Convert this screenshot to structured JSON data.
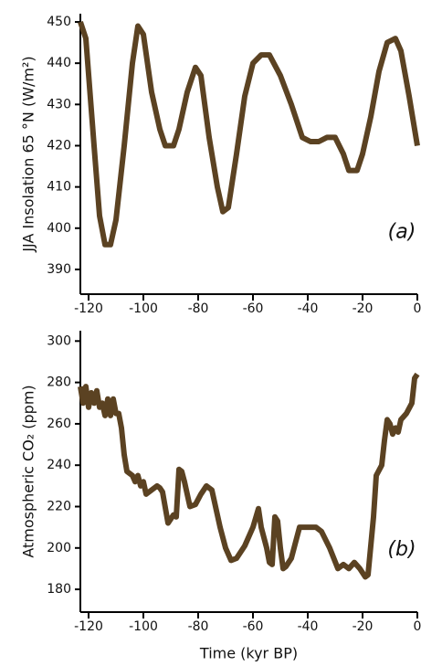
{
  "chart_data": [
    {
      "type": "line",
      "y_label": "JJA Insolation 65 °N (W/m²)",
      "annotation": "(a)",
      "color": "#5b4222",
      "xlim": [
        -123,
        0
      ],
      "xticks": [
        -120,
        -100,
        -80,
        -60,
        -40,
        -20,
        0
      ],
      "ylim": [
        384,
        452
      ],
      "yticks": [
        390,
        400,
        410,
        420,
        430,
        440,
        450
      ],
      "x": [
        -123,
        -121,
        -118,
        -116,
        -114,
        -112,
        -110,
        -107,
        -104,
        -102,
        -100,
        -97,
        -94,
        -92,
        -89,
        -87,
        -84,
        -81,
        -79,
        -76,
        -73,
        -71,
        -69,
        -66,
        -63,
        -60,
        -57,
        -54,
        -50,
        -46,
        -42,
        -39,
        -36,
        -33,
        -30,
        -27,
        -25,
        -22,
        -20,
        -17,
        -14,
        -11,
        -8,
        -6,
        -3,
        0
      ],
      "values": [
        450,
        446,
        420,
        403,
        396,
        396,
        402,
        420,
        440,
        449,
        447,
        433,
        424,
        420,
        420,
        424,
        433,
        439,
        437,
        422,
        410,
        404,
        405,
        418,
        432,
        440,
        442,
        442,
        437,
        430,
        422,
        421,
        421,
        422,
        422,
        418,
        414,
        414,
        418,
        427,
        438,
        445,
        446,
        443,
        432,
        420
      ]
    },
    {
      "type": "line",
      "y_label": "Atmospheric CO₂ (ppm)",
      "x_label": "Time (kyr BP)",
      "annotation": "(b)",
      "color": "#5b4222",
      "xlim": [
        -123,
        0
      ],
      "xticks": [
        -120,
        -100,
        -80,
        -60,
        -40,
        -20,
        0
      ],
      "ylim": [
        169,
        305
      ],
      "yticks": [
        180,
        200,
        220,
        240,
        260,
        280,
        300
      ],
      "x": [
        -123,
        -122,
        -121,
        -120,
        -119,
        -118,
        -117,
        -116,
        -115,
        -114,
        -113,
        -112,
        -111,
        -110,
        -109,
        -108,
        -107,
        -106,
        -105,
        -104,
        -103,
        -102,
        -101,
        -100,
        -99,
        -97,
        -95,
        -94,
        -93,
        -91,
        -90,
        -89,
        -88,
        -87,
        -86,
        -85,
        -83,
        -81,
        -79,
        -77,
        -75,
        -72,
        -70,
        -68,
        -66,
        -63,
        -60,
        -58,
        -57,
        -55,
        -54,
        -53,
        -52,
        -51,
        -50,
        -49,
        -48,
        -46,
        -43,
        -40,
        -37,
        -35,
        -32,
        -29,
        -27,
        -25,
        -23,
        -21,
        -19,
        -18,
        -16,
        -15,
        -13,
        -12,
        -11,
        -10,
        -9,
        -8,
        -7,
        -6,
        -4,
        -2,
        -1,
        0
      ],
      "values": [
        278,
        270,
        278,
        268,
        275,
        270,
        276,
        268,
        270,
        264,
        272,
        264,
        272,
        265,
        265,
        258,
        245,
        237,
        236,
        235,
        232,
        235,
        230,
        232,
        226,
        228,
        230,
        229,
        227,
        212,
        214,
        216,
        215,
        238,
        237,
        232,
        220,
        221,
        226,
        230,
        228,
        210,
        200,
        194,
        195,
        201,
        210,
        219,
        210,
        200,
        193,
        192,
        215,
        213,
        200,
        190,
        191,
        195,
        210,
        210,
        210,
        208,
        200,
        190,
        192,
        190,
        193,
        190,
        186,
        187,
        215,
        235,
        240,
        252,
        262,
        260,
        255,
        258,
        256,
        262,
        265,
        270,
        282,
        284
      ]
    }
  ]
}
